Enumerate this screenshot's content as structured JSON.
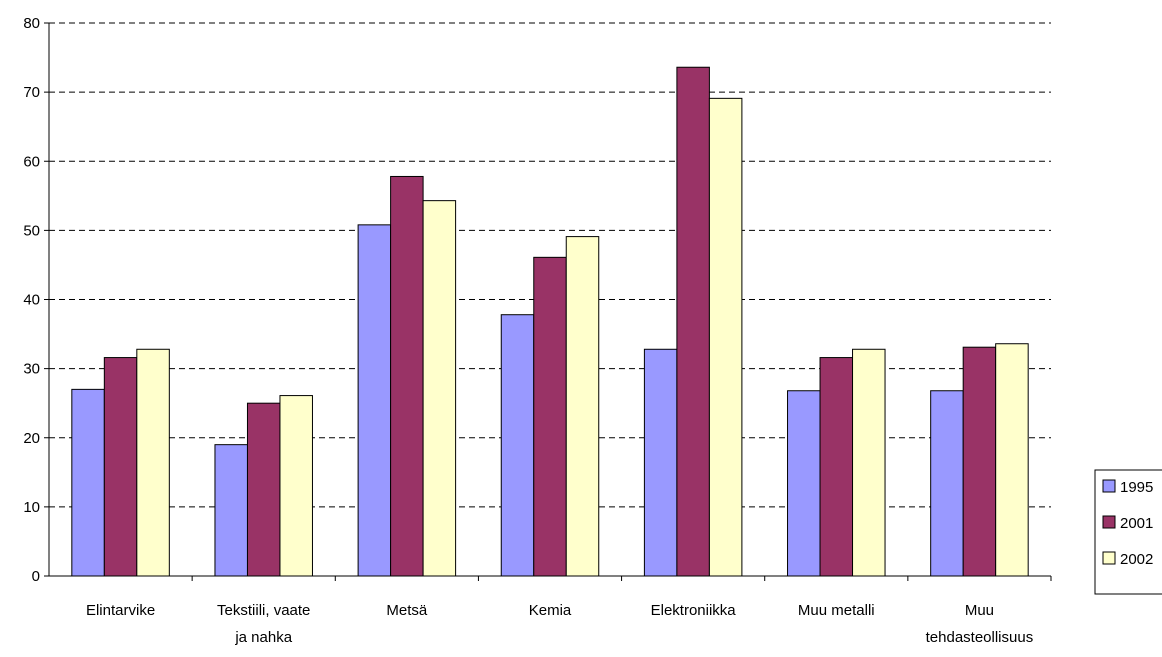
{
  "chart_data": {
    "type": "bar",
    "title": "",
    "xlabel": "",
    "ylabel": "",
    "ylim": [
      0,
      80
    ],
    "yticks": [
      0,
      10,
      20,
      30,
      40,
      50,
      60,
      70,
      80
    ],
    "grid": true,
    "legend_position": "right",
    "categories": [
      [
        "Elintarvike"
      ],
      [
        "Tekstiili, vaate",
        "ja nahka"
      ],
      [
        "Metsä"
      ],
      [
        "Kemia"
      ],
      [
        "Elektroniikka"
      ],
      [
        "Muu metalli"
      ],
      [
        "Muu",
        "tehdasteollisuus"
      ]
    ],
    "series": [
      {
        "name": "1995",
        "color": "#9999ff",
        "values": [
          27,
          19,
          50.8,
          37.8,
          32.8,
          26.8,
          26.8
        ]
      },
      {
        "name": "2001",
        "color": "#993366",
        "values": [
          31.6,
          25,
          57.8,
          46.1,
          73.6,
          31.6,
          33.1
        ]
      },
      {
        "name": "2002",
        "color": "#ffffcc",
        "values": [
          32.8,
          26.1,
          54.3,
          49.1,
          69.1,
          32.8,
          33.6
        ]
      }
    ]
  }
}
